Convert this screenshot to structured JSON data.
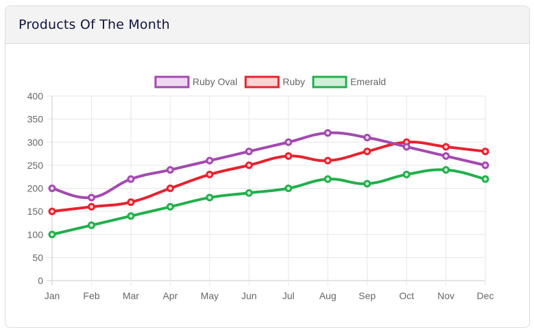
{
  "card": {
    "title": "Products Of The Month"
  },
  "chart_data": {
    "type": "line",
    "categories": [
      "Jan",
      "Feb",
      "Mar",
      "Apr",
      "May",
      "Jun",
      "Jul",
      "Aug",
      "Sep",
      "Oct",
      "Nov",
      "Dec"
    ],
    "series": [
      {
        "name": "Ruby Oval",
        "color": "#a349b0",
        "fill": "#efd9f2",
        "values": [
          200,
          180,
          220,
          240,
          260,
          280,
          300,
          320,
          310,
          290,
          270,
          250
        ]
      },
      {
        "name": "Ruby",
        "color": "#e9212e",
        "fill": "#fbd3d5",
        "values": [
          150,
          160,
          170,
          200,
          230,
          250,
          270,
          260,
          280,
          300,
          290,
          280
        ]
      },
      {
        "name": "Emerald",
        "color": "#21b04b",
        "fill": "#d0efd9",
        "values": [
          100,
          120,
          140,
          160,
          180,
          190,
          200,
          220,
          210,
          230,
          240,
          220
        ]
      }
    ],
    "ylim": [
      0,
      400
    ],
    "yticks": [
      "0",
      "50",
      "100",
      "150",
      "200",
      "250",
      "300",
      "350",
      "400"
    ],
    "grid": true,
    "legend": "top-center",
    "smooth": true
  }
}
